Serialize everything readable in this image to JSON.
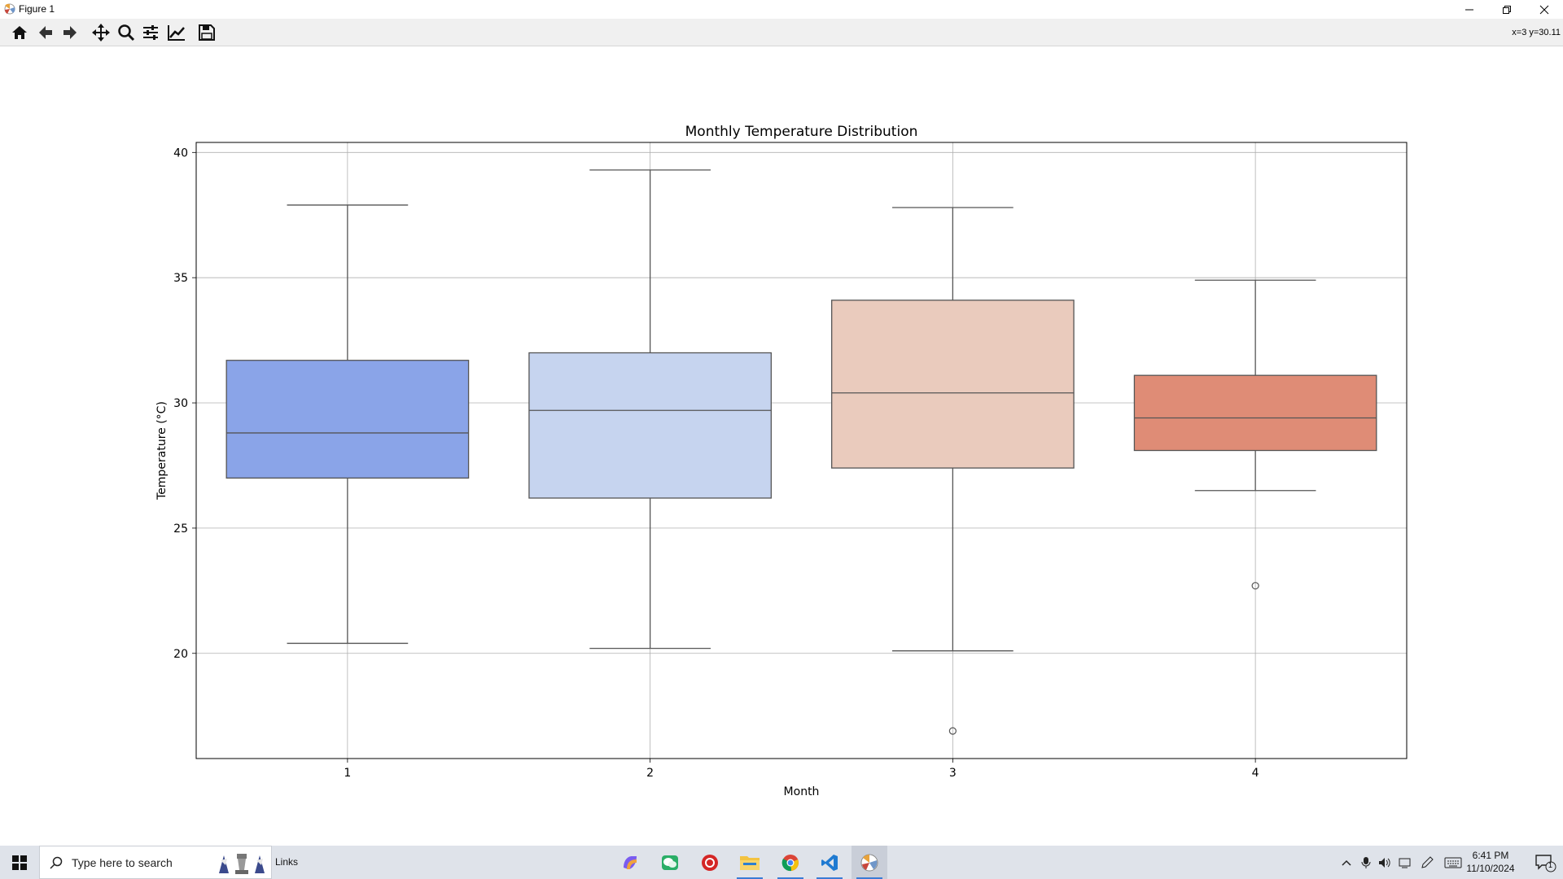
{
  "window": {
    "title": "Figure 1",
    "controls": [
      "minimize",
      "restore",
      "close"
    ]
  },
  "toolbar": {
    "buttons": [
      {
        "name": "home-button",
        "icon": "home-icon"
      },
      {
        "name": "back-button",
        "icon": "arrow-left-icon"
      },
      {
        "name": "forward-button",
        "icon": "arrow-right-icon"
      },
      {
        "name": "pan-button",
        "icon": "move-icon"
      },
      {
        "name": "zoom-button",
        "icon": "magnifier-icon"
      },
      {
        "name": "configure-subplots-button",
        "icon": "sliders-icon"
      },
      {
        "name": "edit-axes-button",
        "icon": "line-chart-icon"
      },
      {
        "name": "save-button",
        "icon": "floppy-icon"
      }
    ],
    "coords": "x=3 y=30.11"
  },
  "chart_data": {
    "type": "box",
    "title": "Monthly Temperature Distribution",
    "xlabel": "Month",
    "ylabel": "Temperature (°C)",
    "categories": [
      "1",
      "2",
      "3",
      "4"
    ],
    "yticks": [
      20,
      25,
      30,
      35,
      40
    ],
    "ylim": [
      15.8,
      40.4
    ],
    "grid": true,
    "boxes": [
      {
        "category": "1",
        "whisker_low": 20.4,
        "q1": 27.0,
        "median": 28.8,
        "q3": 31.7,
        "whisker_high": 37.9,
        "outliers": [],
        "color": "#8aa4e8"
      },
      {
        "category": "2",
        "whisker_low": 20.2,
        "q1": 26.2,
        "median": 29.7,
        "q3": 32.0,
        "whisker_high": 39.3,
        "outliers": [],
        "color": "#c6d4ef"
      },
      {
        "category": "3",
        "whisker_low": 20.1,
        "q1": 27.4,
        "median": 30.4,
        "q3": 34.1,
        "whisker_high": 37.8,
        "outliers": [
          16.9
        ],
        "color": "#eacbbd"
      },
      {
        "category": "4",
        "whisker_low": 26.5,
        "q1": 28.1,
        "median": 29.4,
        "q3": 31.1,
        "whisker_high": 34.9,
        "outliers": [
          22.7
        ],
        "color": "#df8c76"
      }
    ]
  },
  "taskbar": {
    "search_placeholder": "Type here to search",
    "links_label": "Links",
    "apps": [
      "copilot-icon",
      "wechat-icon",
      "red-app-icon",
      "file-explorer-icon",
      "chrome-icon",
      "vscode-icon",
      "python-figure-icon"
    ],
    "clock_time": "6:41 PM",
    "clock_date": "11/10/2024",
    "notification_count": "1"
  }
}
